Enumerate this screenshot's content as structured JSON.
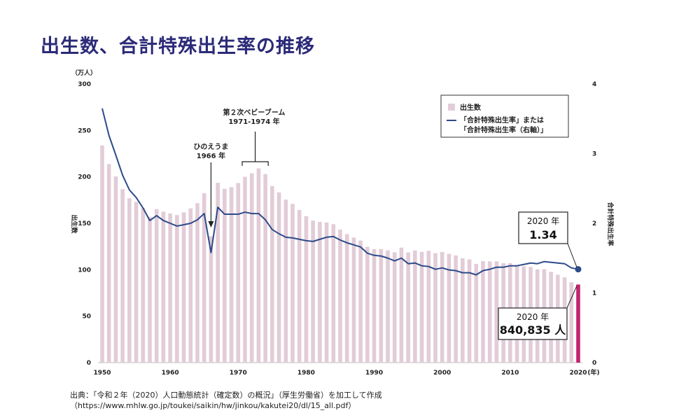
{
  "title": "出生数、合計特殊出生率の推移",
  "source": {
    "line1": "出典：「令和２年（2020）人口動態統計（確定数）の概況」（厚生労働省）を加工して作成",
    "line2": "（https://www.mhlw.go.jp/toukei/saikin/hw/jinkou/kakutei20/dl/15_all.pdf）"
  },
  "colors": {
    "bar": "#e2ccd7",
    "bar_highlight": "#c4226e",
    "line": "#2d4a8a",
    "title": "#2b2a78"
  },
  "chart_data": {
    "type": "bar",
    "x": [
      1950,
      1951,
      1952,
      1953,
      1954,
      1955,
      1956,
      1957,
      1958,
      1959,
      1960,
      1961,
      1962,
      1963,
      1964,
      1965,
      1966,
      1967,
      1968,
      1969,
      1970,
      1971,
      1972,
      1973,
      1974,
      1975,
      1976,
      1977,
      1978,
      1979,
      1980,
      1981,
      1982,
      1983,
      1984,
      1985,
      1986,
      1987,
      1988,
      1989,
      1990,
      1991,
      1992,
      1993,
      1994,
      1995,
      1996,
      1997,
      1998,
      1999,
      2000,
      2001,
      2002,
      2003,
      2004,
      2005,
      2006,
      2007,
      2008,
      2009,
      2010,
      2011,
      2012,
      2013,
      2014,
      2015,
      2016,
      2017,
      2018,
      2019,
      2020
    ],
    "xlim": [
      1950,
      2020
    ],
    "xticks": [
      1950,
      1960,
      1970,
      1980,
      1990,
      2000,
      2010,
      2020
    ],
    "xlabel": "(年)",
    "highlight_year": 2020,
    "series": [
      {
        "name": "出生数",
        "type": "bar",
        "axis": "left",
        "values": [
          233.8,
          213.8,
          200.5,
          186.8,
          177.0,
          173.1,
          166.5,
          156.7,
          165.3,
          162.6,
          160.6,
          158.9,
          161.8,
          166.0,
          171.7,
          182.4,
          136.1,
          193.6,
          187.2,
          189.0,
          193.4,
          200.1,
          203.9,
          209.2,
          203.0,
          190.1,
          183.3,
          175.5,
          170.9,
          164.3,
          157.7,
          152.9,
          151.5,
          150.9,
          149.0,
          143.2,
          138.3,
          134.7,
          131.4,
          124.7,
          122.2,
          122.3,
          120.9,
          118.8,
          123.8,
          118.7,
          120.7,
          119.2,
          120.3,
          117.8,
          119.1,
          117.1,
          115.4,
          112.4,
          111.1,
          106.3,
          109.3,
          109.0,
          109.1,
          107.0,
          107.1,
          105.1,
          103.7,
          103.0,
          100.4,
          100.6,
          97.7,
          94.6,
          91.8,
          86.5,
          84.1
        ]
      },
      {
        "name": "「合計特殊出生率」または「合計特殊出生率（右軸）」",
        "type": "line",
        "axis": "right",
        "values": [
          3.65,
          3.26,
          2.98,
          2.69,
          2.48,
          2.37,
          2.22,
          2.04,
          2.11,
          2.04,
          2.0,
          1.96,
          1.98,
          2.0,
          2.05,
          2.14,
          1.58,
          2.23,
          2.13,
          2.13,
          2.13,
          2.16,
          2.14,
          2.14,
          2.05,
          1.91,
          1.85,
          1.8,
          1.79,
          1.77,
          1.75,
          1.74,
          1.77,
          1.8,
          1.81,
          1.76,
          1.72,
          1.69,
          1.66,
          1.57,
          1.54,
          1.53,
          1.5,
          1.46,
          1.5,
          1.42,
          1.43,
          1.39,
          1.38,
          1.34,
          1.36,
          1.33,
          1.32,
          1.29,
          1.29,
          1.26,
          1.32,
          1.34,
          1.37,
          1.37,
          1.39,
          1.39,
          1.41,
          1.43,
          1.42,
          1.45,
          1.44,
          1.43,
          1.42,
          1.36,
          1.34
        ]
      }
    ],
    "y_left": {
      "label": "出生数",
      "unit": "（万人）",
      "ylim": [
        0,
        300
      ],
      "ticks": [
        0,
        50,
        100,
        150,
        200,
        250,
        300
      ]
    },
    "y_right": {
      "label": "合計特殊出生率",
      "ylim": [
        0,
        4
      ],
      "ticks": [
        0,
        1,
        2,
        3,
        4
      ]
    },
    "legend": {
      "position": "top-right",
      "items": [
        "出生数",
        "「合計特殊出生率」または",
        "「合計特殊出生率（右軸）」"
      ]
    },
    "annotations": {
      "baby_boom": {
        "line1": "第２次ベビーブーム",
        "line2": "1971-1974 年",
        "from": 1971,
        "to": 1974
      },
      "hinoeuma": {
        "line1": "ひのえうま",
        "line2": "1966 年",
        "year": 1966
      },
      "callout_rate": {
        "line1": "2020 年",
        "line2": "1.34"
      },
      "callout_births": {
        "line1": "2020 年",
        "line2": "840,835 人"
      }
    }
  }
}
